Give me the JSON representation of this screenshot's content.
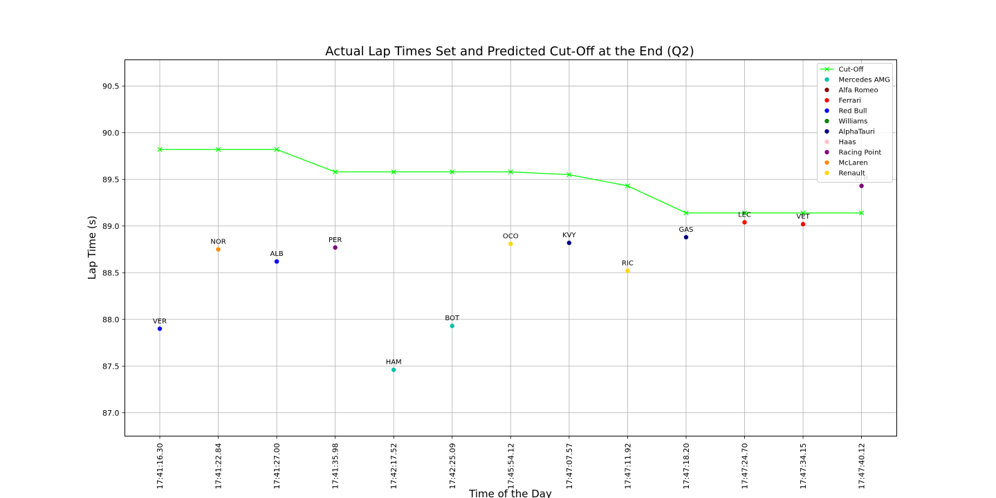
{
  "chart_data": {
    "type": "scatter",
    "title": "Actual Lap Times Set and Predicted Cut-Off at the End (Q2)",
    "xlabel": "Time of the Day",
    "ylabel": "Lap Time (s)",
    "ylim": [
      86.75,
      90.78
    ],
    "yticks": [
      87.0,
      87.5,
      88.0,
      88.5,
      89.0,
      89.5,
      90.0,
      90.5
    ],
    "grid": true,
    "legend_position": "upper right",
    "categories": [
      "17:41:16.30",
      "17:41:22.84",
      "17:41:27.00",
      "17:41:35.98",
      "17:42:17.52",
      "17:42:25.09",
      "17:45:54.12",
      "17:47:07.57",
      "17:47:11.92",
      "17:47:18.20",
      "17:47:24.70",
      "17:47:34.15",
      "17:47:40.12"
    ],
    "cutoff": {
      "name": "Cut-Off",
      "color": "#00ff00",
      "marker": "x",
      "values": [
        89.82,
        89.82,
        89.82,
        89.58,
        89.58,
        89.58,
        89.58,
        89.55,
        89.43,
        89.14,
        89.14,
        89.14,
        89.14
      ]
    },
    "teams": [
      {
        "name": "Mercedes AMG",
        "color": "#00bfa8"
      },
      {
        "name": "Alfa Romeo",
        "color": "#8b0000"
      },
      {
        "name": "Ferrari",
        "color": "#ff0000"
      },
      {
        "name": "Red Bull",
        "color": "#0000ff"
      },
      {
        "name": "Williams",
        "color": "#008000"
      },
      {
        "name": "AlphaTauri",
        "color": "#000080"
      },
      {
        "name": "Haas",
        "color": "#ffc0cb"
      },
      {
        "name": "Racing Point",
        "color": "#800080"
      },
      {
        "name": "McLaren",
        "color": "#ff8c00"
      },
      {
        "name": "Renault",
        "color": "#ffd700"
      }
    ],
    "laps": [
      {
        "driver": "VER",
        "team": "Red Bull",
        "index": 0,
        "value": 87.9
      },
      {
        "driver": "NOR",
        "team": "McLaren",
        "index": 1,
        "value": 88.75
      },
      {
        "driver": "ALB",
        "team": "Red Bull",
        "index": 2,
        "value": 88.62
      },
      {
        "driver": "PER",
        "team": "Racing Point",
        "index": 3,
        "value": 88.77
      },
      {
        "driver": "HAM",
        "team": "Mercedes AMG",
        "index": 4,
        "value": 87.46
      },
      {
        "driver": "BOT",
        "team": "Mercedes AMG",
        "index": 5,
        "value": 87.93
      },
      {
        "driver": "OCO",
        "team": "Renault",
        "index": 6,
        "value": 88.81
      },
      {
        "driver": "KVY",
        "team": "AlphaTauri",
        "index": 7,
        "value": 88.82
      },
      {
        "driver": "RIC",
        "team": "Renault",
        "index": 8,
        "value": 88.52
      },
      {
        "driver": "GAS",
        "team": "AlphaTauri",
        "index": 9,
        "value": 88.88
      },
      {
        "driver": "LEC",
        "team": "Ferrari",
        "index": 10,
        "value": 89.04
      },
      {
        "driver": "VET",
        "team": "Ferrari",
        "index": 11,
        "value": 89.02
      },
      {
        "driver": "STR",
        "team": "Racing Point",
        "index": 12,
        "value": 89.43
      }
    ]
  }
}
